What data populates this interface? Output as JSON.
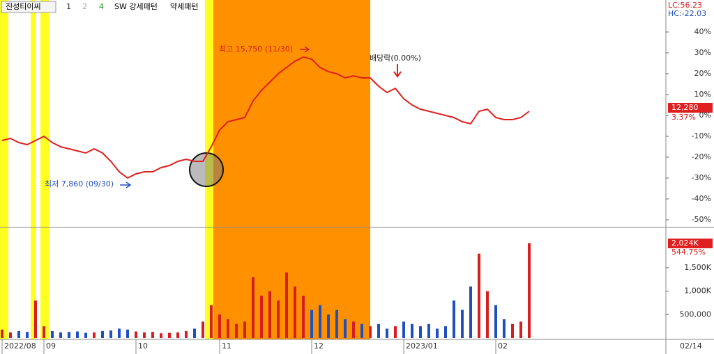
{
  "header": {
    "name": "진성티이씨",
    "options": [
      "1",
      "2",
      "4",
      "SW 강세패턴",
      "약세패턴"
    ]
  },
  "indicators": {
    "lc": "LC:56.23",
    "hc": "HC:-22.03",
    "price": "12,280",
    "price_change": "3.37%",
    "volume": "2,024K",
    "volume_change": "544.75%",
    "date": "02/14"
  },
  "chart_data": [
    {
      "type": "line",
      "color": "#e02020",
      "categories": [
        "2022/08",
        null,
        null,
        null,
        null,
        "09",
        null,
        null,
        null,
        null,
        null,
        null,
        null,
        null,
        null,
        null,
        "10",
        null,
        null,
        null,
        null,
        null,
        null,
        null,
        null,
        null,
        "11",
        null,
        null,
        null,
        null,
        null,
        null,
        null,
        null,
        null,
        null,
        "12",
        null,
        null,
        null,
        null,
        null,
        null,
        null,
        null,
        null,
        null,
        "2023/01",
        null,
        null,
        null,
        null,
        null,
        null,
        null,
        null,
        null,
        null,
        "02",
        null,
        null,
        null,
        null
      ],
      "values": [
        -12,
        -11,
        -13,
        -14,
        -12,
        -10,
        -13,
        -15,
        -16,
        -17,
        -18,
        -16,
        -18,
        -22,
        -27,
        -30,
        -28,
        -27,
        -27,
        -25,
        -24,
        -22,
        -21,
        -22,
        -22,
        -15,
        -7,
        -3,
        -2,
        -1,
        7,
        12,
        16,
        20,
        23,
        26,
        28,
        27,
        23,
        21,
        20,
        18,
        19,
        18,
        18,
        14,
        11,
        13,
        8,
        5,
        3,
        2,
        1,
        0,
        -1,
        -3,
        -4,
        2,
        3,
        -1,
        -2,
        -2,
        -1,
        2
      ],
      "ylim": [
        -53,
        51
      ],
      "yticks": [
        {
          "value": 40,
          "label": "40%"
        },
        {
          "value": 30,
          "label": "30%"
        },
        {
          "value": 20,
          "label": "20%"
        },
        {
          "value": 10,
          "label": "10%"
        },
        {
          "value": 0,
          "label": "0%"
        },
        {
          "value": -10,
          "label": "-10%"
        },
        {
          "value": -20,
          "label": "-20%"
        },
        {
          "value": -30,
          "label": "-30%"
        },
        {
          "value": -40,
          "label": "-40%"
        },
        {
          "value": -50,
          "label": "-50%"
        }
      ],
      "annotations": [
        "최고 15,750 (11/30)",
        "최저 7,860 (09/30)",
        "배당락(0.00%)"
      ]
    },
    {
      "type": "bar",
      "up_color": "#d42020",
      "down_color": "#2050c0",
      "values": [
        180000,
        120000,
        150000,
        130000,
        800000,
        250000,
        150000,
        120000,
        130000,
        140000,
        110000,
        120000,
        150000,
        160000,
        200000,
        180000,
        140000,
        120000,
        130000,
        100000,
        110000,
        120000,
        150000,
        200000,
        350000,
        700000,
        500000,
        400000,
        300000,
        350000,
        1300000,
        900000,
        1000000,
        800000,
        1400000,
        1100000,
        900000,
        600000,
        700000,
        500000,
        600000,
        400000,
        350000,
        300000,
        250000,
        300000,
        200000,
        250000,
        350000,
        300000,
        250000,
        300000,
        200000,
        250000,
        800000,
        600000,
        1100000,
        1800000,
        1000000,
        700000,
        400000,
        300000,
        350000,
        2024000
      ],
      "ylim": [
        0,
        2300000
      ],
      "yticks": [
        {
          "value": 500000,
          "label": "500,000"
        },
        {
          "value": 1000000,
          "label": "1,000K"
        },
        {
          "value": 1500000,
          "label": "1,500K"
        }
      ]
    }
  ]
}
